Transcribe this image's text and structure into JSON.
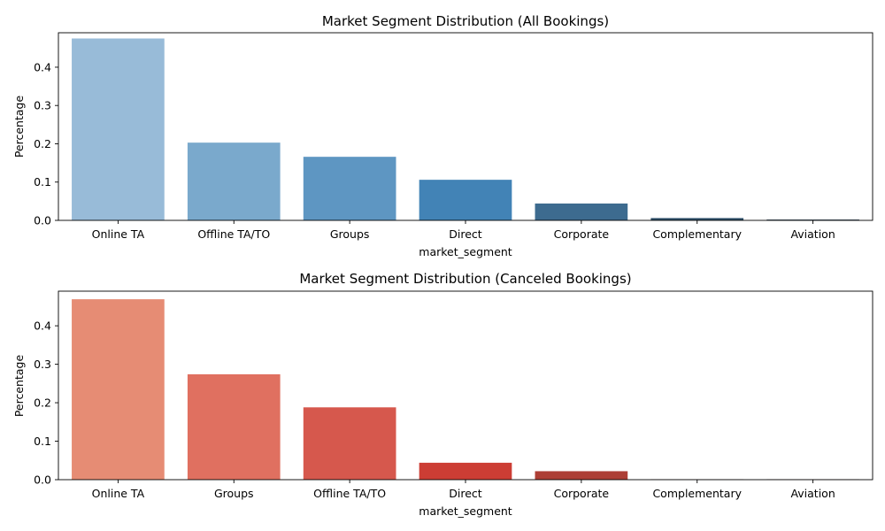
{
  "chart_data": [
    {
      "type": "bar",
      "title": "Market Segment Distribution (All Bookings)",
      "xlabel": "market_segment",
      "ylabel": "Percentage",
      "categories": [
        "Online TA",
        "Offline TA/TO",
        "Groups",
        "Direct",
        "Corporate",
        "Complementary",
        "Aviation"
      ],
      "values": [
        0.475,
        0.203,
        0.166,
        0.106,
        0.044,
        0.006,
        0.002
      ],
      "colors": [
        "#98bbd8",
        "#7aa9cc",
        "#5e96c2",
        "#4283b6",
        "#3d6b8f",
        "#2e4f69",
        "#1d3346"
      ],
      "ylim": [
        0,
        0.49
      ],
      "yticks": [
        "0.0",
        "0.1",
        "0.2",
        "0.3",
        "0.4"
      ],
      "grid": false
    },
    {
      "type": "bar",
      "title": "Market Segment Distribution (Canceled Bookings)",
      "xlabel": "market_segment",
      "ylabel": "Percentage",
      "categories": [
        "Online TA",
        "Groups",
        "Offline TA/TO",
        "Direct",
        "Corporate",
        "Complementary",
        "Aviation"
      ],
      "values": [
        0.469,
        0.274,
        0.188,
        0.044,
        0.022,
        0.001,
        0.001
      ],
      "colors": [
        "#e68c74",
        "#e07060",
        "#d6584d",
        "#cc3d34",
        "#ad3e35",
        "#7d3029",
        "#4a1f1c"
      ],
      "ylim": [
        0,
        0.49
      ],
      "yticks": [
        "0.0",
        "0.1",
        "0.2",
        "0.3",
        "0.4"
      ],
      "grid": false
    }
  ]
}
